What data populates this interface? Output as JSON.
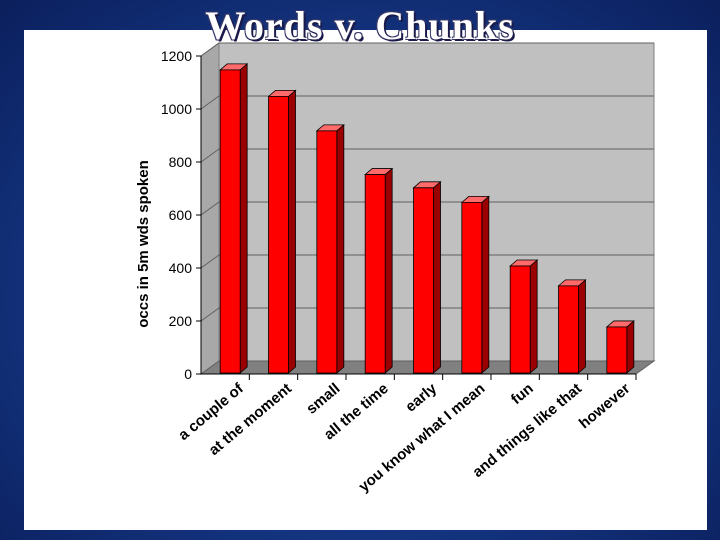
{
  "slide": {
    "title": "Words v. Chunks"
  },
  "colors": {
    "bar": "#ff0000",
    "bar_side": "#9a0000",
    "bar_top": "#ff6a6a",
    "plot_back": "#c0c0c0",
    "plot_floor": "#808080",
    "background": "#163a8a"
  },
  "chart_data": {
    "type": "bar",
    "title": "",
    "xlabel": "",
    "ylabel": "occs in 5m wds spoken",
    "ylim": [
      0,
      1200
    ],
    "yticks": [
      0,
      200,
      400,
      600,
      800,
      1000,
      1200
    ],
    "grid": true,
    "categories": [
      "a couple of",
      "at the moment",
      "small",
      "all the time",
      "early",
      "you know what I mean",
      "fun",
      "and things like that",
      "however"
    ],
    "values": [
      1140,
      1040,
      910,
      745,
      695,
      640,
      400,
      325,
      170
    ]
  }
}
